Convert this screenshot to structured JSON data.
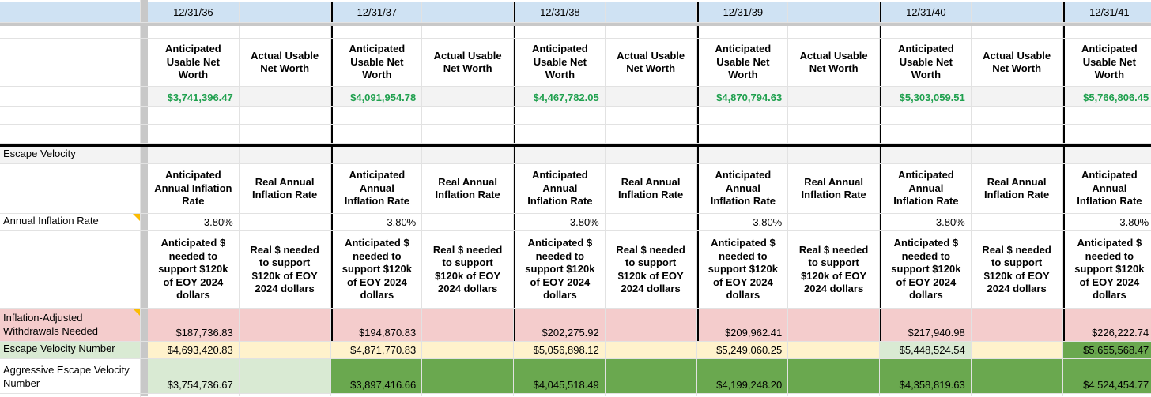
{
  "columns": {
    "dates": [
      "12/31/36",
      "12/31/37",
      "12/31/38",
      "12/31/39",
      "12/31/40",
      "12/31/41"
    ]
  },
  "net_worth": {
    "anticipated_header": "Anticipated Usable Net Worth",
    "actual_header": "Actual Usable Net Worth",
    "anticipated_values": [
      "$3,741,396.47",
      "$4,091,954.78",
      "$4,467,782.05",
      "$4,870,794.63",
      "$5,303,059.51",
      "$5,766,806.45"
    ]
  },
  "escape_velocity": {
    "section_title": "Escape Velocity",
    "anticipated_inflation_header": "Anticipated Annual Inflation Rate",
    "real_inflation_header": "Real Annual Inflation Rate",
    "annual_inflation_label": "Annual Inflation Rate",
    "annual_inflation_values": [
      "3.80%",
      "3.80%",
      "3.80%",
      "3.80%",
      "3.80%",
      "3.80%"
    ],
    "anticipated_needed_header": "Anticipated $ needed to support $120k of EOY 2024 dollars",
    "real_needed_header": "Real $ needed to support $120k of EOY 2024 dollars",
    "withdrawals_label": "Inflation-Adjusted Withdrawals Needed",
    "withdrawals_values": [
      "$187,736.83",
      "$194,870.83",
      "$202,275.92",
      "$209,962.41",
      "$217,940.98",
      "$226,222.74"
    ],
    "escape_velocity_label": "Escape Velocity Number",
    "escape_velocity_values": [
      "$4,693,420.83",
      "$4,871,770.83",
      "$5,056,898.12",
      "$5,249,060.25",
      "$5,448,524.54",
      "$5,655,568.47"
    ],
    "aggressive_label": "Aggressive Escape Velocity Number",
    "aggressive_values": [
      "$3,754,736.67",
      "$3,897,416.66",
      "$4,045,518.49",
      "$4,199,248.20",
      "$4,358,819.63",
      "$4,524,454.77"
    ]
  },
  "colors": {
    "header_blue": "#cfe2f3",
    "band_gray": "#c8c8c8",
    "cell_gray": "#f3f3f3",
    "pink": "#f4cccc",
    "yellow": "#fff2cc",
    "light_green": "#d9ead3",
    "dark_green": "#6aa84f",
    "green_text": "#1fa04e",
    "note_orange": "#fbbc04"
  }
}
